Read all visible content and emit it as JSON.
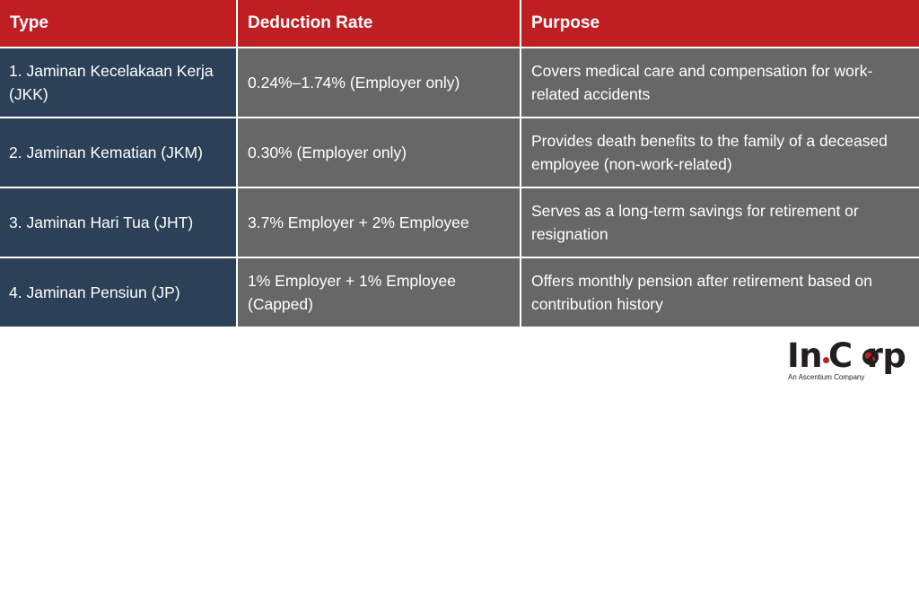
{
  "table": {
    "headers": {
      "type": "Type",
      "rate": "Deduction Rate",
      "purpose": "Purpose"
    },
    "rows": [
      {
        "type": "1. Jaminan Kecelakaan Kerja (JKK)",
        "rate": "0.24%–1.74% (Employer only)",
        "purpose": "Covers medical care and compensation for work-related accidents"
      },
      {
        "type": "2. Jaminan Kematian (JKM)",
        "rate": "0.30% (Employer only)",
        "purpose": "Provides death benefits to the family of a deceased employee (non-work-related)"
      },
      {
        "type": "3. Jaminan Hari Tua (JHT)",
        "rate": "3.7% Employer + 2% Employee",
        "purpose": "Serves as a long-term savings for retirement or resignation"
      },
      {
        "type": "4. Jaminan Pensiun (JP)",
        "rate": "1% Employer + 1% Employee (Capped)",
        "purpose": "Offers monthly pension after retirement based on contribution history"
      }
    ]
  },
  "logo": {
    "brand": "InCorp",
    "tagline": "An Ascentium Company",
    "icon": "globe-icon"
  },
  "colors": {
    "header_bg": "#bf1e22",
    "type_col_bg": "#2c4157",
    "body_bg": "#676767",
    "accent": "#bf1e22"
  }
}
